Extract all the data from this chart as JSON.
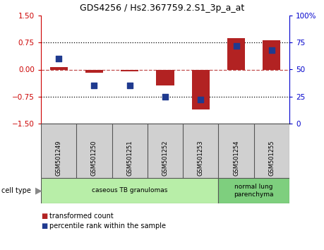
{
  "title": "GDS4256 / Hs2.367759.2.S1_3p_a_at",
  "samples": [
    "GSM501249",
    "GSM501250",
    "GSM501251",
    "GSM501252",
    "GSM501253",
    "GSM501254",
    "GSM501255"
  ],
  "transformed_count": [
    0.07,
    -0.08,
    -0.05,
    -0.45,
    -1.1,
    0.88,
    0.82
  ],
  "percentile_rank": [
    60,
    35,
    35,
    25,
    22,
    72,
    68
  ],
  "ylim_left": [
    -1.5,
    1.5
  ],
  "ylim_right": [
    0,
    100
  ],
  "yticks_left": [
    -1.5,
    -0.75,
    0,
    0.75,
    1.5
  ],
  "yticks_right": [
    0,
    25,
    50,
    75,
    100
  ],
  "ytick_labels_right": [
    "0",
    "25",
    "50",
    "75",
    "100%"
  ],
  "hlines_dotted": [
    0.75,
    -0.75
  ],
  "hline_dashed": 0,
  "bar_color": "#b22222",
  "dot_color": "#1f3a8f",
  "cell_type_groups": [
    {
      "label": "caseous TB granulomas",
      "start": 0,
      "end": 4,
      "color": "#b8eea8"
    },
    {
      "label": "normal lung\nparenchyma",
      "start": 5,
      "end": 6,
      "color": "#7ecf7e"
    }
  ],
  "legend_items": [
    {
      "color": "#b22222",
      "label": "transformed count"
    },
    {
      "color": "#1f3a8f",
      "label": "percentile rank within the sample"
    }
  ],
  "left_tick_color": "#cc0000",
  "right_tick_color": "#0000cc",
  "bar_width": 0.5,
  "dot_size": 35,
  "sample_bg_color": "#d0d0d0",
  "sample_border_color": "#555555"
}
